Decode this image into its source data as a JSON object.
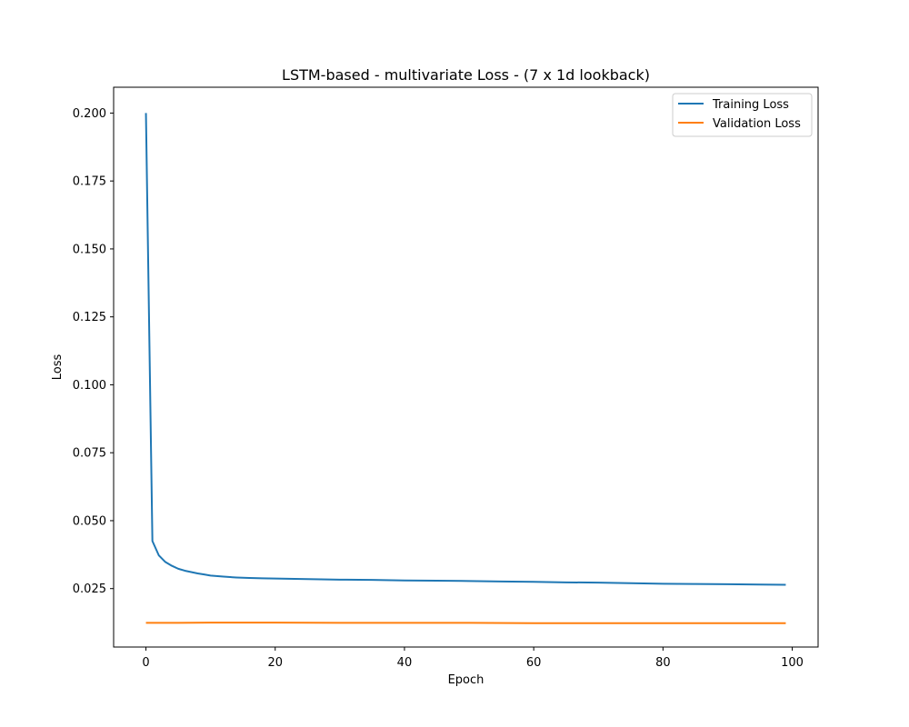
{
  "chart_data": {
    "type": "line",
    "title": "LSTM-based - multivariate Loss - (7 x 1d lookback)",
    "xlabel": "Epoch",
    "ylabel": "Loss",
    "xlim": [
      -5,
      104
    ],
    "ylim": [
      0.0035,
      0.2095
    ],
    "xticks": [
      0,
      20,
      40,
      60,
      80,
      100
    ],
    "xtick_labels": [
      "0",
      "20",
      "40",
      "60",
      "80",
      "100"
    ],
    "yticks": [
      0.025,
      0.05,
      0.075,
      0.1,
      0.125,
      0.15,
      0.175,
      0.2
    ],
    "ytick_labels": [
      "0.025",
      "0.050",
      "0.075",
      "0.100",
      "0.125",
      "0.150",
      "0.175",
      "0.200"
    ],
    "grid": false,
    "legend_position": "top-right",
    "colors": {
      "training": "#1f77b4",
      "validation": "#ff7f0e",
      "axis": "#000000",
      "legend_border": "#cccccc"
    },
    "series": [
      {
        "name": "Training Loss",
        "color": "#1f77b4",
        "x": [
          0,
          1,
          2,
          3,
          4,
          5,
          6,
          7,
          8,
          9,
          10,
          12,
          14,
          16,
          18,
          20,
          25,
          30,
          35,
          40,
          45,
          50,
          55,
          60,
          65,
          70,
          75,
          80,
          85,
          90,
          95,
          99
        ],
        "values": [
          0.2,
          0.0425,
          0.0372,
          0.0348,
          0.0334,
          0.0323,
          0.0316,
          0.0311,
          0.0306,
          0.0302,
          0.0298,
          0.0294,
          0.0291,
          0.0289,
          0.0288,
          0.0287,
          0.0285,
          0.0283,
          0.0282,
          0.028,
          0.0279,
          0.0278,
          0.0276,
          0.0275,
          0.0273,
          0.0272,
          0.027,
          0.0268,
          0.0267,
          0.0266,
          0.0265,
          0.0264
        ]
      },
      {
        "name": "Validation Loss",
        "color": "#ff7f0e",
        "x": [
          0,
          5,
          10,
          15,
          20,
          30,
          40,
          50,
          60,
          70,
          80,
          90,
          99
        ],
        "values": [
          0.0124,
          0.0124,
          0.0125,
          0.0125,
          0.0125,
          0.0124,
          0.0124,
          0.0124,
          0.0123,
          0.0123,
          0.0123,
          0.0123,
          0.0123
        ]
      }
    ]
  }
}
